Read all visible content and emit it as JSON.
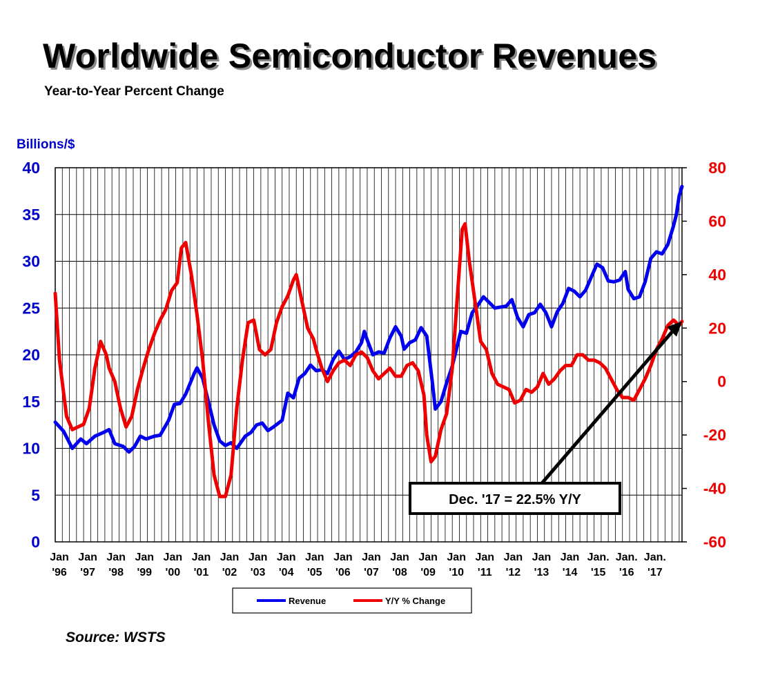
{
  "chart_data": {
    "type": "line",
    "title": "Worldwide Semiconductor Revenues",
    "subtitle": "Year-to-Year Percent Change",
    "ylabel_left": "Billions/$",
    "source": "Source: WSTS",
    "x_tick_labels": [
      [
        "Jan",
        "'96"
      ],
      [
        "Jan",
        "'97"
      ],
      [
        "Jan",
        "'98"
      ],
      [
        "Jan",
        "'99"
      ],
      [
        "Jan",
        "'00"
      ],
      [
        "Jan",
        "'01"
      ],
      [
        "Jan",
        "'02"
      ],
      [
        "Jan",
        "'03"
      ],
      [
        "Jan",
        "'04"
      ],
      [
        "Jan",
        "'05"
      ],
      [
        "Jan",
        "'06"
      ],
      [
        "Jan",
        "'07"
      ],
      [
        "Jan",
        "'08"
      ],
      [
        "Jan",
        "'09"
      ],
      [
        "Jan",
        "'10"
      ],
      [
        "Jan",
        "'11"
      ],
      [
        "Jan",
        "'12"
      ],
      [
        "Jan",
        "'13"
      ],
      [
        "Jan",
        "'14"
      ],
      [
        "Jan.",
        "'15"
      ],
      [
        "Jan.",
        "'16"
      ],
      [
        "Jan.",
        "'17"
      ]
    ],
    "y_left": {
      "min": 0,
      "max": 40,
      "ticks": [
        0,
        5,
        10,
        15,
        20,
        25,
        30,
        35,
        40
      ],
      "color": "#0000ee"
    },
    "y_right": {
      "min": -60,
      "max": 80,
      "ticks": [
        -60,
        -40,
        -20,
        0,
        20,
        40,
        60,
        80
      ],
      "color": "#ee0000"
    },
    "grid": "vertical quarterly lines, horizontal at left-axis ticks",
    "legend": {
      "position": "bottom-center",
      "entries": [
        "Revenue",
        "Y/Y % Change"
      ]
    },
    "annotation": "Dec. '17 = 22.5% Y/Y",
    "series": [
      {
        "name": "Revenue",
        "axis": "left",
        "color": "#0000ee",
        "points": [
          [
            1996.0,
            12.8
          ],
          [
            1996.3,
            11.8
          ],
          [
            1996.6,
            10.0
          ],
          [
            1996.9,
            11.0
          ],
          [
            1997.1,
            10.5
          ],
          [
            1997.4,
            11.3
          ],
          [
            1997.7,
            11.7
          ],
          [
            1997.9,
            12.0
          ],
          [
            1998.1,
            10.5
          ],
          [
            1998.4,
            10.2
          ],
          [
            1998.6,
            9.6
          ],
          [
            1998.8,
            10.2
          ],
          [
            1999.0,
            11.3
          ],
          [
            1999.2,
            11.0
          ],
          [
            1999.5,
            11.3
          ],
          [
            1999.7,
            11.4
          ],
          [
            2000.0,
            13.0
          ],
          [
            2000.2,
            14.7
          ],
          [
            2000.4,
            14.8
          ],
          [
            2000.6,
            15.8
          ],
          [
            2000.9,
            18.0
          ],
          [
            2001.0,
            18.6
          ],
          [
            2001.2,
            17.5
          ],
          [
            2001.4,
            15.0
          ],
          [
            2001.6,
            12.5
          ],
          [
            2001.8,
            10.8
          ],
          [
            2002.0,
            10.3
          ],
          [
            2002.2,
            10.6
          ],
          [
            2002.4,
            10.0
          ],
          [
            2002.7,
            11.3
          ],
          [
            2002.9,
            11.7
          ],
          [
            2003.1,
            12.5
          ],
          [
            2003.3,
            12.7
          ],
          [
            2003.5,
            11.9
          ],
          [
            2003.7,
            12.3
          ],
          [
            2004.0,
            13.0
          ],
          [
            2004.2,
            15.9
          ],
          [
            2004.4,
            15.4
          ],
          [
            2004.6,
            17.5
          ],
          [
            2004.8,
            18.0
          ],
          [
            2005.0,
            18.9
          ],
          [
            2005.2,
            18.3
          ],
          [
            2005.4,
            18.4
          ],
          [
            2005.6,
            18.0
          ],
          [
            2005.8,
            19.5
          ],
          [
            2006.0,
            20.4
          ],
          [
            2006.2,
            19.5
          ],
          [
            2006.4,
            19.8
          ],
          [
            2006.6,
            20.3
          ],
          [
            2006.8,
            21.3
          ],
          [
            2006.9,
            22.5
          ],
          [
            2007.0,
            21.6
          ],
          [
            2007.2,
            20.0
          ],
          [
            2007.4,
            20.3
          ],
          [
            2007.6,
            20.2
          ],
          [
            2007.8,
            21.8
          ],
          [
            2008.0,
            23.0
          ],
          [
            2008.2,
            22.0
          ],
          [
            2008.3,
            20.6
          ],
          [
            2008.5,
            21.3
          ],
          [
            2008.7,
            21.6
          ],
          [
            2008.9,
            22.9
          ],
          [
            2009.1,
            22.0
          ],
          [
            2009.3,
            17.0
          ],
          [
            2009.4,
            14.2
          ],
          [
            2009.6,
            15.0
          ],
          [
            2009.8,
            17.0
          ],
          [
            2010.0,
            18.8
          ],
          [
            2010.3,
            22.5
          ],
          [
            2010.5,
            22.3
          ],
          [
            2010.7,
            24.5
          ],
          [
            2010.9,
            25.3
          ],
          [
            2011.1,
            26.2
          ],
          [
            2011.3,
            25.6
          ],
          [
            2011.5,
            25.0
          ],
          [
            2011.7,
            25.1
          ],
          [
            2011.9,
            25.2
          ],
          [
            2012.1,
            25.9
          ],
          [
            2012.3,
            24.0
          ],
          [
            2012.5,
            23.0
          ],
          [
            2012.7,
            24.3
          ],
          [
            2012.9,
            24.5
          ],
          [
            2013.1,
            25.4
          ],
          [
            2013.3,
            24.5
          ],
          [
            2013.5,
            23.0
          ],
          [
            2013.7,
            24.6
          ],
          [
            2013.9,
            25.5
          ],
          [
            2014.1,
            27.1
          ],
          [
            2014.3,
            26.8
          ],
          [
            2014.5,
            26.2
          ],
          [
            2014.7,
            26.9
          ],
          [
            2014.9,
            28.3
          ],
          [
            2015.1,
            29.7
          ],
          [
            2015.3,
            29.3
          ],
          [
            2015.5,
            27.9
          ],
          [
            2015.7,
            27.8
          ],
          [
            2015.9,
            28.0
          ],
          [
            2016.1,
            28.9
          ],
          [
            2016.2,
            27.0
          ],
          [
            2016.4,
            26.0
          ],
          [
            2016.6,
            26.2
          ],
          [
            2016.8,
            27.8
          ],
          [
            2017.0,
            30.3
          ],
          [
            2017.2,
            31.0
          ],
          [
            2017.4,
            30.8
          ],
          [
            2017.6,
            31.8
          ],
          [
            2017.8,
            33.8
          ],
          [
            2017.9,
            35.0
          ],
          [
            2018.0,
            37.0
          ],
          [
            2018.1,
            38.0
          ]
        ]
      },
      {
        "name": "Y/Y % Change",
        "axis": "right",
        "color": "#ee0000",
        "points": [
          [
            1996.0,
            33
          ],
          [
            1996.15,
            8
          ],
          [
            1996.4,
            -13
          ],
          [
            1996.6,
            -18
          ],
          [
            1996.8,
            -17
          ],
          [
            1997.0,
            -16
          ],
          [
            1997.2,
            -10
          ],
          [
            1997.4,
            5
          ],
          [
            1997.6,
            15
          ],
          [
            1997.8,
            10
          ],
          [
            1997.9,
            5
          ],
          [
            1998.1,
            0
          ],
          [
            1998.3,
            -10
          ],
          [
            1998.5,
            -17
          ],
          [
            1998.7,
            -13
          ],
          [
            1998.9,
            -3
          ],
          [
            1999.1,
            5
          ],
          [
            1999.3,
            12
          ],
          [
            1999.5,
            18
          ],
          [
            1999.7,
            23
          ],
          [
            1999.9,
            27
          ],
          [
            2000.1,
            34
          ],
          [
            2000.3,
            37
          ],
          [
            2000.45,
            50
          ],
          [
            2000.6,
            52
          ],
          [
            2000.8,
            40
          ],
          [
            2001.0,
            25
          ],
          [
            2001.2,
            8
          ],
          [
            2001.4,
            -15
          ],
          [
            2001.6,
            -35
          ],
          [
            2001.8,
            -43
          ],
          [
            2002.0,
            -43
          ],
          [
            2002.2,
            -35
          ],
          [
            2002.4,
            -10
          ],
          [
            2002.6,
            8
          ],
          [
            2002.8,
            22
          ],
          [
            2003.0,
            23
          ],
          [
            2003.2,
            12
          ],
          [
            2003.4,
            10
          ],
          [
            2003.6,
            12
          ],
          [
            2003.8,
            22
          ],
          [
            2004.0,
            28
          ],
          [
            2004.2,
            32
          ],
          [
            2004.4,
            38
          ],
          [
            2004.5,
            40
          ],
          [
            2004.7,
            30
          ],
          [
            2004.9,
            20
          ],
          [
            2005.1,
            16
          ],
          [
            2005.2,
            12
          ],
          [
            2005.4,
            5
          ],
          [
            2005.6,
            0
          ],
          [
            2005.8,
            4
          ],
          [
            2006.0,
            7
          ],
          [
            2006.2,
            8
          ],
          [
            2006.4,
            6
          ],
          [
            2006.6,
            10
          ],
          [
            2006.8,
            11
          ],
          [
            2007.0,
            9
          ],
          [
            2007.2,
            4
          ],
          [
            2007.4,
            1
          ],
          [
            2007.6,
            3
          ],
          [
            2007.8,
            5
          ],
          [
            2008.0,
            2
          ],
          [
            2008.2,
            2
          ],
          [
            2008.4,
            6
          ],
          [
            2008.6,
            7
          ],
          [
            2008.8,
            4
          ],
          [
            2009.0,
            -5
          ],
          [
            2009.1,
            -20
          ],
          [
            2009.25,
            -30
          ],
          [
            2009.4,
            -28
          ],
          [
            2009.6,
            -18
          ],
          [
            2009.8,
            -12
          ],
          [
            2010.0,
            5
          ],
          [
            2010.2,
            35
          ],
          [
            2010.35,
            57
          ],
          [
            2010.45,
            59
          ],
          [
            2010.6,
            45
          ],
          [
            2010.8,
            30
          ],
          [
            2011.0,
            15
          ],
          [
            2011.2,
            12
          ],
          [
            2011.4,
            3
          ],
          [
            2011.6,
            -1
          ],
          [
            2011.8,
            -2
          ],
          [
            2012.0,
            -3
          ],
          [
            2012.2,
            -8
          ],
          [
            2012.4,
            -7
          ],
          [
            2012.6,
            -3
          ],
          [
            2012.8,
            -4
          ],
          [
            2013.0,
            -2
          ],
          [
            2013.2,
            3
          ],
          [
            2013.4,
            -1
          ],
          [
            2013.6,
            1
          ],
          [
            2013.8,
            4
          ],
          [
            2014.0,
            6
          ],
          [
            2014.2,
            6
          ],
          [
            2014.4,
            10
          ],
          [
            2014.6,
            10
          ],
          [
            2014.8,
            8
          ],
          [
            2015.0,
            8
          ],
          [
            2015.2,
            7
          ],
          [
            2015.4,
            5
          ],
          [
            2015.6,
            1
          ],
          [
            2015.8,
            -3
          ],
          [
            2016.0,
            -6
          ],
          [
            2016.2,
            -6
          ],
          [
            2016.4,
            -7
          ],
          [
            2016.6,
            -3
          ],
          [
            2016.8,
            1
          ],
          [
            2017.0,
            6
          ],
          [
            2017.2,
            12
          ],
          [
            2017.4,
            16
          ],
          [
            2017.6,
            21
          ],
          [
            2017.8,
            23
          ],
          [
            2018.0,
            21
          ],
          [
            2018.1,
            22.5
          ]
        ]
      }
    ]
  }
}
